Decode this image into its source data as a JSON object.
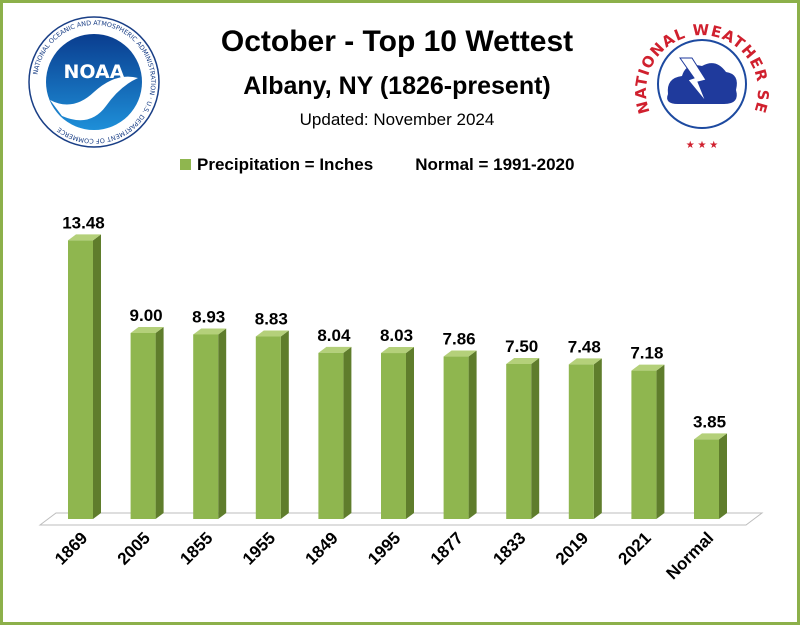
{
  "logos": {
    "noaa_text": "NOAA",
    "noaa_ring": "NATIONAL OCEANIC AND ATMOSPHERIC ADMINISTRATION · U.S. DEPARTMENT OF COMMERCE",
    "nws_ring": "NATIONAL WEATHER SERVICE"
  },
  "chart_data": {
    "type": "bar",
    "title": "October - Top 10 Wettest",
    "subtitle": "Albany, NY (1826-present)",
    "updated": "Updated: November 2024",
    "legend": {
      "series_label": "Precipitation = Inches",
      "note": "Normal = 1991-2020",
      "placement": "top"
    },
    "categories": [
      "1869",
      "2005",
      "1855",
      "1955",
      "1849",
      "1995",
      "1877",
      "1833",
      "2019",
      "2021",
      "Normal"
    ],
    "values": [
      13.48,
      9.0,
      8.93,
      8.83,
      8.04,
      8.03,
      7.86,
      7.5,
      7.48,
      7.18,
      3.85
    ],
    "data_labels": [
      "13.48",
      "9.00",
      "8.93",
      "8.83",
      "8.04",
      "8.03",
      "7.86",
      "7.50",
      "7.48",
      "7.18",
      "3.85"
    ],
    "ylim": [
      0,
      14
    ],
    "grid": false,
    "colors": {
      "bar": "#8fb64f",
      "bar_side": "#5f7d2c",
      "bar_top": "#b4d07a",
      "border": "#8cb04a"
    }
  }
}
